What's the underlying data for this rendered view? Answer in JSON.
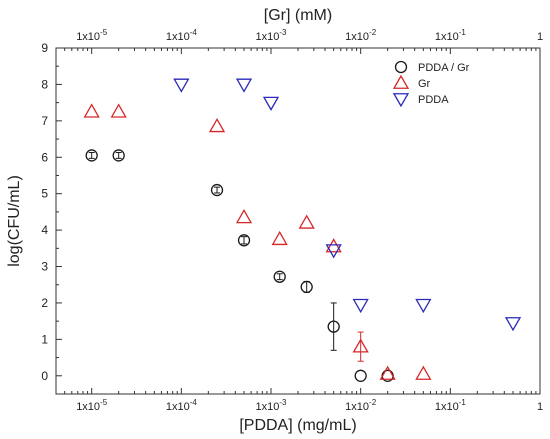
{
  "chart_data": {
    "type": "scatter",
    "xlabel": "[PDDA] (mg/mL)",
    "x2label": "[Gr] (mM)",
    "ylabel": "log(CFU/mL)",
    "xscale": "log",
    "xlim": [
      4e-06,
      1
    ],
    "ylim": [
      -0.5,
      9
    ],
    "grid": false,
    "legend_position": "top-right",
    "xticks": [
      1e-05,
      0.0001,
      0.001,
      0.01,
      0.1,
      1
    ],
    "xtick_labels": [
      {
        "mant": "1x10",
        "exp": "-5"
      },
      {
        "mant": "1x10",
        "exp": "-4"
      },
      {
        "mant": "1x10",
        "exp": "-3"
      },
      {
        "mant": "1x10",
        "exp": "-2"
      },
      {
        "mant": "1x10",
        "exp": "-1"
      },
      {
        "mant": "1",
        "exp": ""
      }
    ],
    "yticks": [
      0,
      1,
      2,
      3,
      4,
      5,
      6,
      7,
      8,
      9
    ],
    "ytick_labels": [
      "0",
      "1",
      "2",
      "3",
      "4",
      "5",
      "6",
      "7",
      "8",
      "9"
    ],
    "series": [
      {
        "name": "PDDA / Gr",
        "marker": "circle",
        "color": "#1a1a1a",
        "points": [
          {
            "x": 1e-05,
            "y": 6.05,
            "err": 0.08
          },
          {
            "x": 2e-05,
            "y": 6.05,
            "err": 0.08
          },
          {
            "x": 0.00025,
            "y": 5.1,
            "err": 0.08
          },
          {
            "x": 0.0005,
            "y": 3.72,
            "err": 0.1
          },
          {
            "x": 0.00125,
            "y": 2.72,
            "err": 0.08
          },
          {
            "x": 0.0025,
            "y": 2.44,
            "err": 0.15
          },
          {
            "x": 0.005,
            "y": 1.35,
            "err": 0.65
          },
          {
            "x": 0.01,
            "y": 0.0,
            "err": 0.0
          },
          {
            "x": 0.02,
            "y": 0.0,
            "err": 0.0
          }
        ]
      },
      {
        "name": "Gr",
        "marker": "triangle-up",
        "color": "#d62728",
        "points": [
          {
            "x": 1e-05,
            "y": 7.25,
            "err": 0.0
          },
          {
            "x": 2e-05,
            "y": 7.25,
            "err": 0.0
          },
          {
            "x": 0.00025,
            "y": 6.85,
            "err": 0.0
          },
          {
            "x": 0.0005,
            "y": 4.35,
            "err": 0.0
          },
          {
            "x": 0.00125,
            "y": 3.75,
            "err": 0.0
          },
          {
            "x": 0.0025,
            "y": 4.2,
            "err": 0.0
          },
          {
            "x": 0.005,
            "y": 3.55,
            "err": 0.0
          },
          {
            "x": 0.01,
            "y": 0.8,
            "err": 0.4
          },
          {
            "x": 0.02,
            "y": 0.05,
            "err": 0.0
          },
          {
            "x": 0.05,
            "y": 0.05,
            "err": 0.0
          }
        ]
      },
      {
        "name": "PDDA",
        "marker": "triangle-down",
        "color": "#2a2ab8",
        "points": [
          {
            "x": 0.0001,
            "y": 8.0,
            "err": 0.0
          },
          {
            "x": 0.0005,
            "y": 8.0,
            "err": 0.0
          },
          {
            "x": 0.001,
            "y": 7.5,
            "err": 0.0
          },
          {
            "x": 0.005,
            "y": 3.45,
            "err": 0.0
          },
          {
            "x": 0.01,
            "y": 1.95,
            "err": 0.0
          },
          {
            "x": 0.05,
            "y": 1.95,
            "err": 0.0
          },
          {
            "x": 0.5,
            "y": 1.45,
            "err": 0.0
          }
        ]
      }
    ]
  }
}
